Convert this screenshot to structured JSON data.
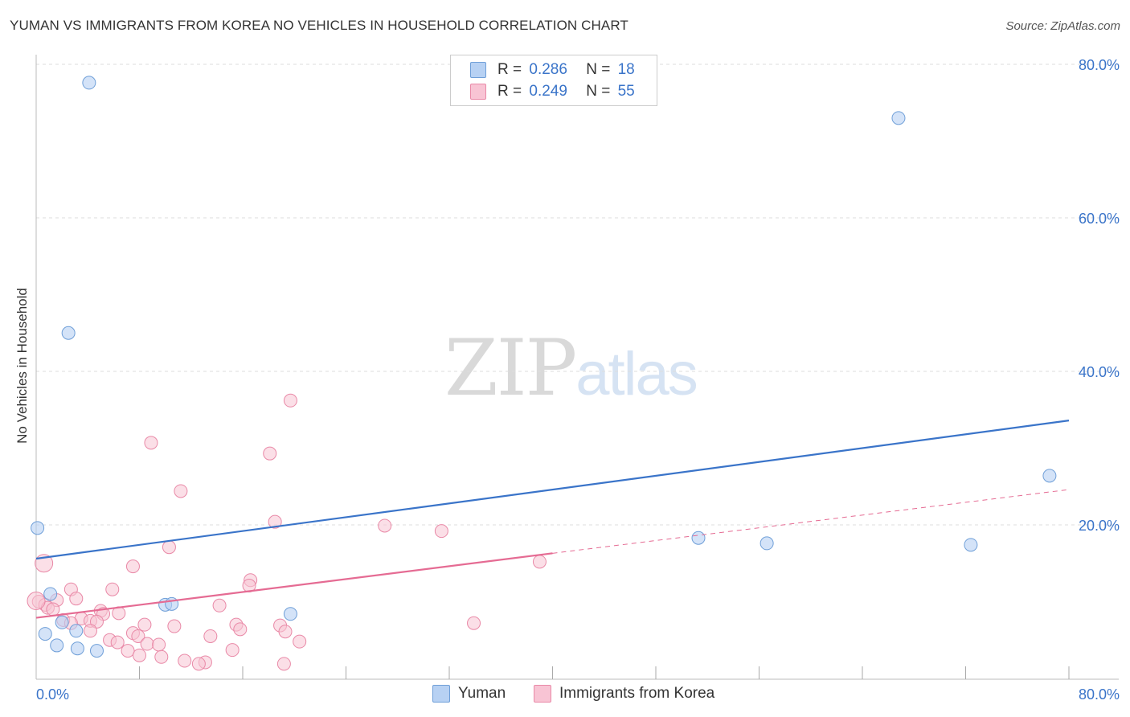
{
  "header": {
    "title": "YUMAN VS IMMIGRANTS FROM KOREA NO VEHICLES IN HOUSEHOLD CORRELATION CHART",
    "source": "Source: ZipAtlas.com"
  },
  "watermark": {
    "zip": "ZIP",
    "atlas": "atlas"
  },
  "legend": {
    "r_label": "R =",
    "n_label": "N =",
    "items": [
      {
        "name": "Yuman",
        "r": "0.286",
        "n": "18",
        "fill": "#b7d1f3",
        "stroke": "#6f9fd8"
      },
      {
        "name": "Immigrants from Korea",
        "r": "0.249",
        "n": "55",
        "fill": "#f8c4d4",
        "stroke": "#e989a7"
      }
    ]
  },
  "colors": {
    "blue_line": "#3a74c9",
    "pink_line": "#e56b93",
    "grid": "#dddddd",
    "tick_text": "#3a74c9"
  },
  "chart_data": {
    "type": "scatter",
    "title": "YUMAN VS IMMIGRANTS FROM KOREA NO VEHICLES IN HOUSEHOLD CORRELATION CHART",
    "xlabel": "",
    "ylabel": "No Vehicles in Household",
    "xlim": [
      0,
      80
    ],
    "ylim": [
      0,
      80
    ],
    "x_tick_labels": [
      "0.0%",
      "80.0%"
    ],
    "y_tick_labels": [
      {
        "value": 80,
        "label": "80.0%"
      },
      {
        "value": 60,
        "label": "60.0%"
      },
      {
        "value": 40,
        "label": "40.0%"
      },
      {
        "value": 20,
        "label": "20.0%"
      }
    ],
    "series": [
      {
        "name": "Yuman",
        "points": [
          [
            4.1,
            77.6
          ],
          [
            66.8,
            73.0
          ],
          [
            2.5,
            45.0
          ],
          [
            0.1,
            19.6
          ],
          [
            78.5,
            26.4
          ],
          [
            51.3,
            18.3
          ],
          [
            56.6,
            17.6
          ],
          [
            72.4,
            17.4
          ],
          [
            1.1,
            11.0
          ],
          [
            10.0,
            9.6
          ],
          [
            10.5,
            9.7
          ],
          [
            19.7,
            8.4
          ],
          [
            2.0,
            7.3
          ],
          [
            3.1,
            6.2
          ],
          [
            0.7,
            5.8
          ],
          [
            1.6,
            4.3
          ],
          [
            3.2,
            3.9
          ],
          [
            4.7,
            3.6
          ]
        ],
        "trend": {
          "x0": 0,
          "y0": 15.6,
          "x1": 80,
          "y1": 33.6
        }
      },
      {
        "name": "Immigrants from Korea",
        "points": [
          [
            19.7,
            36.2
          ],
          [
            8.9,
            30.7
          ],
          [
            18.1,
            29.3
          ],
          [
            11.2,
            24.4
          ],
          [
            18.5,
            20.4
          ],
          [
            27.0,
            19.9
          ],
          [
            31.4,
            19.2
          ],
          [
            10.3,
            17.1
          ],
          [
            0.6,
            15.0
          ],
          [
            7.5,
            14.6
          ],
          [
            39.0,
            15.2
          ],
          [
            16.6,
            12.8
          ],
          [
            16.5,
            12.1
          ],
          [
            2.7,
            11.6
          ],
          [
            5.9,
            11.6
          ],
          [
            3.1,
            10.4
          ],
          [
            0.2,
            10.0
          ],
          [
            0.7,
            9.6
          ],
          [
            1.6,
            10.2
          ],
          [
            0.9,
            9.2
          ],
          [
            1.3,
            9.0
          ],
          [
            14.2,
            9.5
          ],
          [
            5.0,
            8.8
          ],
          [
            6.4,
            8.5
          ],
          [
            5.2,
            8.4
          ],
          [
            2.1,
            7.6
          ],
          [
            3.5,
            7.8
          ],
          [
            4.2,
            7.5
          ],
          [
            4.7,
            7.4
          ],
          [
            2.7,
            7.2
          ],
          [
            8.4,
            7.0
          ],
          [
            15.5,
            7.0
          ],
          [
            18.9,
            6.9
          ],
          [
            33.9,
            7.2
          ],
          [
            4.2,
            6.2
          ],
          [
            10.7,
            6.8
          ],
          [
            15.8,
            6.4
          ],
          [
            19.3,
            6.1
          ],
          [
            7.5,
            5.9
          ],
          [
            13.5,
            5.5
          ],
          [
            7.9,
            5.5
          ],
          [
            5.7,
            5.0
          ],
          [
            6.3,
            4.7
          ],
          [
            8.6,
            4.5
          ],
          [
            9.5,
            4.4
          ],
          [
            20.4,
            4.8
          ],
          [
            7.1,
            3.6
          ],
          [
            15.2,
            3.7
          ],
          [
            8.0,
            3.0
          ],
          [
            9.7,
            2.8
          ],
          [
            11.5,
            2.3
          ],
          [
            13.1,
            2.1
          ],
          [
            12.6,
            1.9
          ],
          [
            19.2,
            1.9
          ],
          [
            0.0,
            10.1
          ]
        ],
        "trend": {
          "x0": 0,
          "y0": 7.9,
          "x1": 40,
          "y1": 16.3
        },
        "trend_dashed": {
          "x0": 40,
          "y0": 16.3,
          "x1": 80,
          "y1": 24.6
        }
      }
    ]
  }
}
